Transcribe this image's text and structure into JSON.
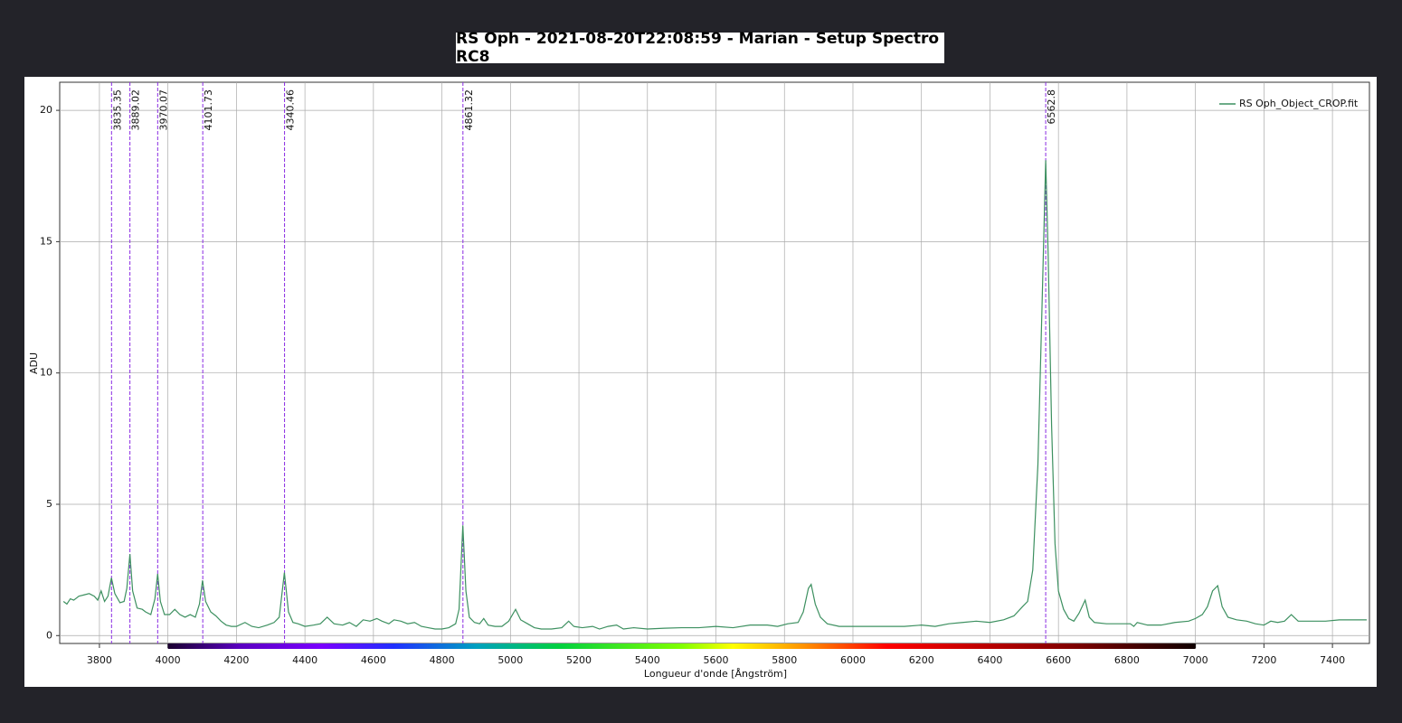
{
  "chart_data": {
    "type": "line",
    "title": "RS Oph - 2021-08-20T22:08:59 - Marian - Setup Spectro RC8",
    "x_label": "Longueur d'onde [Ångström]",
    "y_label": "ADU",
    "xlim": [
      3684,
      7508
    ],
    "ylim": [
      -0.3,
      21.07
    ],
    "xticks": [
      3800,
      4000,
      4200,
      4400,
      4600,
      4800,
      5000,
      5200,
      5400,
      5600,
      5800,
      6000,
      6200,
      6400,
      6600,
      6800,
      7000,
      7200,
      7400
    ],
    "yticks": [
      0,
      5,
      10,
      15,
      20
    ],
    "grid": true,
    "legend": "top-right",
    "markers": [
      3835.35,
      3889.02,
      3970.07,
      4101.73,
      4340.46,
      4861.32,
      6562.8
    ],
    "marker_color": "#8a2be2",
    "colorbar_range": [
      4000,
      7000
    ],
    "x": [
      3695,
      3705,
      3715,
      3725,
      3740,
      3755,
      3770,
      3785,
      3795,
      3805,
      3815,
      3825,
      3835,
      3845,
      3860,
      3872,
      3880,
      3889,
      3897,
      3910,
      3925,
      3935,
      3950,
      3962,
      3970,
      3978,
      3990,
      4005,
      4020,
      4035,
      4050,
      4065,
      4080,
      4092,
      4101,
      4110,
      4125,
      4140,
      4155,
      4170,
      4185,
      4200,
      4225,
      4245,
      4265,
      4290,
      4310,
      4325,
      4340,
      4352,
      4365,
      4380,
      4400,
      4425,
      4445,
      4465,
      4485,
      4510,
      4530,
      4550,
      4570,
      4590,
      4610,
      4625,
      4645,
      4660,
      4680,
      4700,
      4720,
      4740,
      4760,
      4780,
      4800,
      4820,
      4840,
      4850,
      4861,
      4870,
      4880,
      4895,
      4910,
      4922,
      4935,
      4955,
      4975,
      4995,
      5015,
      5030,
      5050,
      5070,
      5090,
      5120,
      5150,
      5170,
      5185,
      5210,
      5240,
      5260,
      5285,
      5310,
      5330,
      5360,
      5400,
      5450,
      5500,
      5550,
      5600,
      5650,
      5700,
      5750,
      5780,
      5810,
      5840,
      5855,
      5870,
      5878,
      5890,
      5905,
      5925,
      5960,
      6000,
      6050,
      6100,
      6150,
      6200,
      6240,
      6280,
      6320,
      6360,
      6400,
      6440,
      6470,
      6495,
      6510,
      6525,
      6540,
      6552,
      6562.8,
      6570,
      6580,
      6590,
      6600,
      6615,
      6630,
      6645,
      6660,
      6678,
      6690,
      6705,
      6740,
      6780,
      6810,
      6820,
      6830,
      6860,
      6900,
      6940,
      6980,
      7000,
      7020,
      7035,
      7050,
      7065,
      7078,
      7095,
      7120,
      7150,
      7175,
      7200,
      7220,
      7240,
      7260,
      7280,
      7300,
      7340,
      7380,
      7420,
      7460,
      7500
    ],
    "series": [
      {
        "name": "RS Oph_Object_CROP.fit",
        "color": "#3d9060",
        "values": [
          1.3,
          1.2,
          1.4,
          1.35,
          1.5,
          1.55,
          1.6,
          1.5,
          1.35,
          1.7,
          1.3,
          1.5,
          2.2,
          1.6,
          1.25,
          1.3,
          1.8,
          3.1,
          1.7,
          1.05,
          1.0,
          0.9,
          0.8,
          1.4,
          2.35,
          1.3,
          0.8,
          0.8,
          1.0,
          0.8,
          0.7,
          0.8,
          0.7,
          1.2,
          2.1,
          1.3,
          0.9,
          0.75,
          0.55,
          0.4,
          0.35,
          0.35,
          0.5,
          0.35,
          0.3,
          0.4,
          0.5,
          0.7,
          2.4,
          0.9,
          0.5,
          0.45,
          0.35,
          0.4,
          0.45,
          0.7,
          0.45,
          0.4,
          0.5,
          0.35,
          0.6,
          0.55,
          0.65,
          0.55,
          0.45,
          0.6,
          0.55,
          0.45,
          0.5,
          0.35,
          0.3,
          0.25,
          0.25,
          0.3,
          0.45,
          1.0,
          4.2,
          1.7,
          0.7,
          0.5,
          0.45,
          0.65,
          0.4,
          0.35,
          0.35,
          0.55,
          1.0,
          0.6,
          0.45,
          0.3,
          0.25,
          0.25,
          0.3,
          0.55,
          0.35,
          0.3,
          0.35,
          0.25,
          0.35,
          0.4,
          0.25,
          0.3,
          0.25,
          0.28,
          0.3,
          0.3,
          0.35,
          0.3,
          0.4,
          0.4,
          0.35,
          0.45,
          0.5,
          0.9,
          1.8,
          1.95,
          1.2,
          0.7,
          0.45,
          0.35,
          0.35,
          0.35,
          0.35,
          0.35,
          0.4,
          0.35,
          0.45,
          0.5,
          0.55,
          0.5,
          0.6,
          0.75,
          1.1,
          1.3,
          2.5,
          6.5,
          12.5,
          18.1,
          14.5,
          8.0,
          3.5,
          1.7,
          1.0,
          0.65,
          0.55,
          0.85,
          1.35,
          0.7,
          0.5,
          0.45,
          0.45,
          0.45,
          0.35,
          0.5,
          0.4,
          0.4,
          0.5,
          0.55,
          0.65,
          0.8,
          1.1,
          1.7,
          1.9,
          1.1,
          0.7,
          0.6,
          0.55,
          0.45,
          0.4,
          0.55,
          0.5,
          0.55,
          0.8,
          0.55,
          0.55,
          0.55,
          0.6,
          0.6,
          0.6
        ]
      }
    ]
  }
}
